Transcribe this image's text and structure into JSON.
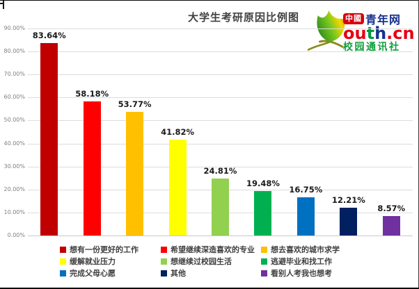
{
  "chart_data": {
    "type": "bar",
    "title": "大学生考研原因比例图",
    "categories": [
      "想有一份更好的工作",
      "希望继续深造喜欢的专业",
      "想去喜欢的城市求学",
      "缓解就业压力",
      "想继续过校园生活",
      "逃避毕业和找工作",
      "完成父母心愿",
      "其他",
      "看别人考我也想考"
    ],
    "values": [
      83.64,
      58.18,
      53.77,
      41.82,
      24.81,
      19.48,
      16.75,
      12.21,
      8.57
    ],
    "value_labels": [
      "83.64%",
      "58.18%",
      "53.77%",
      "41.82%",
      "24.81%",
      "19.48%",
      "16.75%",
      "12.21%",
      "8.57%"
    ],
    "bar_colors": [
      "#c00000",
      "#fe0000",
      "#ffc000",
      "#ffff00",
      "#92d050",
      "#00b050",
      "#0070c0",
      "#002060",
      "#7030a0"
    ],
    "xlabel": "",
    "ylabel": "",
    "ylim": [
      0,
      90
    ],
    "y_tick_labels": [
      "90.00%",
      "80.00%",
      "70.00%",
      "60.00%",
      "50.00%",
      "40.00%",
      "30.00%",
      "20.00%",
      "10.00%",
      "0.00%"
    ],
    "grid": true,
    "legend_position": "bottom"
  },
  "logo": {
    "badge_text": "中國",
    "site_name": "青年网",
    "domain": "outh.cn",
    "domain_letters": [
      {
        "ch": "o",
        "color": "#e60012"
      },
      {
        "ch": "u",
        "color": "#e60012"
      },
      {
        "ch": "t",
        "color": "#009944"
      },
      {
        "ch": "h",
        "color": "#16318f"
      },
      {
        "ch": ".",
        "color": "#e60012"
      },
      {
        "ch": "c",
        "color": "#e60012"
      },
      {
        "ch": "n",
        "color": "#e60012"
      }
    ],
    "subtitle": "校园通讯社",
    "colors": {
      "badge_bg": "#d7000f",
      "site_name": "#16318f",
      "subtitle": "#0f9d3c"
    }
  }
}
